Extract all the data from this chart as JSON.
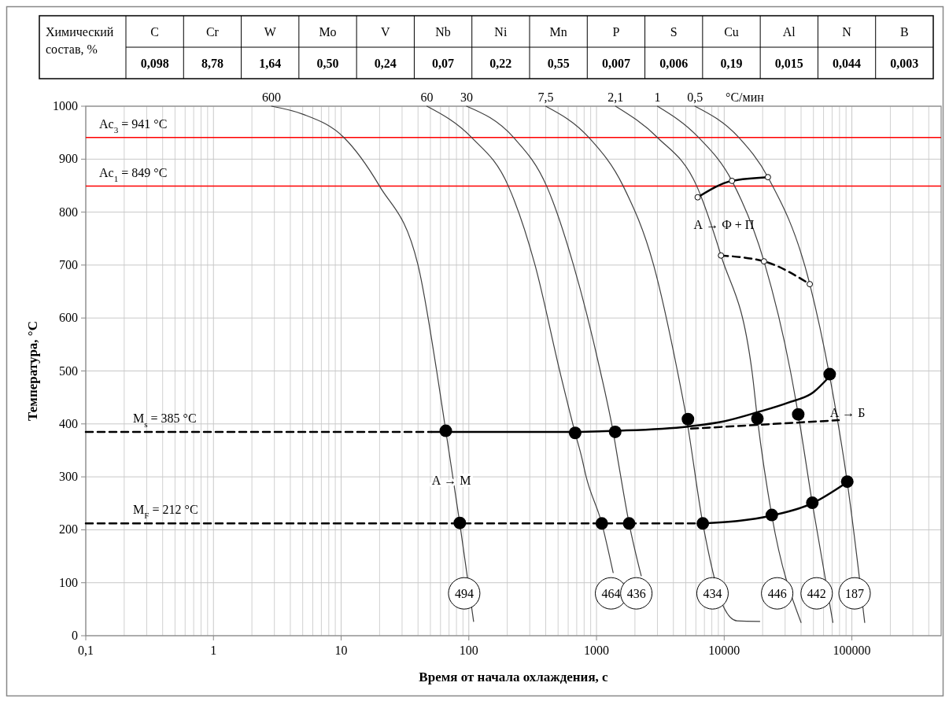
{
  "chart_data": [
    {
      "type": "other",
      "title": "Химический состав, %",
      "categories": [
        "C",
        "Cr",
        "W",
        "Mo",
        "V",
        "Nb",
        "Ni",
        "Mn",
        "P",
        "S",
        "Cu",
        "Al",
        "N",
        "B"
      ],
      "value_labels": [
        "0,098",
        "8,78",
        "1,64",
        "0,50",
        "0,24",
        "0,07",
        "0,22",
        "0,55",
        "0,007",
        "0,006",
        "0,19",
        "0,015",
        "0,044",
        "0,003"
      ]
    },
    {
      "type": "line",
      "xlabel": "Время от начала охлаждения, с",
      "ylabel": "Температура, °С",
      "log": "x",
      "grid": true,
      "xlim": [
        0.1,
        500000
      ],
      "xticks": [
        {
          "value": 0.1,
          "label": "0,1"
        },
        1,
        10,
        100,
        1000,
        10000,
        100000
      ],
      "ylim": [
        0,
        1000
      ],
      "yticks": [
        0,
        100,
        200,
        300,
        400,
        500,
        600,
        700,
        800,
        900,
        1000
      ],
      "ref_lines": [
        {
          "axis": "y",
          "value": 941,
          "label": "Ac$_{3}$ = 941 °C",
          "color": "#ff0000"
        },
        {
          "axis": "y",
          "value": 849,
          "label": "Ac$_{1}$ = 849 °C",
          "color": "#ff0000"
        }
      ],
      "series": [
        {
          "name": "600",
          "color": "#404040",
          "x": [
            2.85,
            5,
            10.5,
            20,
            40,
            56,
            66,
            85,
            109
          ],
          "values": [
            1000,
            985,
            941,
            849,
            700,
            500,
            387,
            212,
            27
          ]
        },
        {
          "name": "60",
          "color": "#404040",
          "x": [
            47,
            105,
            204,
            330,
            515,
            680,
            760,
            830,
            1100,
            1350
          ],
          "values": [
            1000,
            941,
            849,
            700,
            500,
            383,
            340,
            300,
            212,
            119
          ]
        },
        {
          "name": "30",
          "color": "#404040",
          "x": [
            96,
            224,
            407,
            660,
            1070,
            1350,
            1500,
            1800,
            2240
          ],
          "values": [
            1000,
            941,
            849,
            700,
            500,
            385,
            320,
            212,
            113
          ]
        },
        {
          "name": "7,5",
          "color": "#404040",
          "x": [
            400,
            870,
            1620,
            2800,
            4300,
            5080,
            6800,
            10000,
            12600,
            19000
          ],
          "values": [
            1000,
            941,
            849,
            700,
            500,
            409,
            212,
            52,
            28,
            27
          ]
        },
        {
          "name": "2,1",
          "color": "#404040",
          "x": [
            1410,
            3000,
            6100,
            9440,
            16500,
            18200,
            23600,
            40000
          ],
          "values": [
            1000,
            941,
            849,
            718,
            500,
            410,
            227,
            25
          ]
        },
        {
          "name": "1",
          "color": "#404040",
          "x": [
            3000,
            6300,
            11500,
            20500,
            33000,
            38000,
            49000,
            71000
          ],
          "values": [
            1000,
            941,
            859,
            707,
            500,
            418,
            250,
            25
          ]
        },
        {
          "name": "0,5",
          "color": "#404040",
          "x": [
            5900,
            13000,
            22000,
            46800,
            67000,
            92000,
            126000
          ],
          "values": [
            1000,
            941,
            866,
            664,
            490,
            290,
            25
          ]
        },
        {
          "name": "M$_{s}$ = 385 °C",
          "type": "line",
          "line_style": "dashed",
          "color": "#000000",
          "x": [
            0.1,
            51
          ],
          "values": [
            385,
            385
          ]
        },
        {
          "name": "M$_{F}$ = 212 °C",
          "type": "line",
          "line_style": "dashed",
          "color": "#000000",
          "x": [
            0.1,
            6800
          ],
          "values": [
            212,
            212
          ]
        },
        {
          "type": "line",
          "marker": "circle",
          "color": "#000000",
          "x": [
            6200,
            11500,
            22000
          ],
          "values": [
            828,
            859,
            866
          ]
        },
        {
          "type": "line",
          "marker": "circle",
          "line_style": "dashed",
          "color": "#000000",
          "x": [
            9440,
            20500,
            46800
          ],
          "values": [
            718,
            707,
            664
          ]
        },
        {
          "type": "line",
          "color": "#000000",
          "x": [
            51,
            680,
            1400,
            5200,
            10000,
            18200,
            31600,
            50000,
            67000
          ],
          "values": [
            385,
            385,
            387,
            395,
            405,
            422,
            440,
            460,
            490
          ]
        },
        {
          "type": "line",
          "line_style": "dashed",
          "color": "#000000",
          "x": [
            5500,
            79000
          ],
          "values": [
            391,
            407
          ]
        },
        {
          "type": "line",
          "color": "#000000",
          "x": [
            6800,
            23600,
            49000,
            92000
          ],
          "values": [
            212,
            227,
            250,
            290
          ]
        },
        {
          "type": "scatter",
          "color": "#000000",
          "x": [
            66,
            680,
            1400,
            5200,
            18200,
            38000,
            67000
          ],
          "values": [
            387,
            383,
            385,
            409,
            410,
            418,
            494
          ]
        },
        {
          "type": "scatter",
          "color": "#000000",
          "x": [
            85,
            1100,
            1800,
            6800,
            23600,
            49000,
            92000
          ],
          "values": [
            213,
            212,
            212,
            212,
            228,
            251,
            291
          ]
        }
      ],
      "annotations": [
        "°С/мин",
        "А → Ф + П",
        {
          "text": "А → М",
          "x": 73,
          "y": 294
        },
        "А → Б",
        {
          "text": "494",
          "x": 92,
          "y": 80
        },
        {
          "text": "464",
          "x": 1300,
          "y": 80
        },
        {
          "text": "436",
          "x": 2050,
          "y": 80
        },
        {
          "text": "434",
          "x": 8100,
          "y": 80
        },
        {
          "text": "446",
          "x": 26000,
          "y": 80
        },
        {
          "text": "442",
          "x": 53000,
          "y": 80
        },
        {
          "text": "187",
          "x": 105000,
          "y": 80
        }
      ]
    }
  ]
}
